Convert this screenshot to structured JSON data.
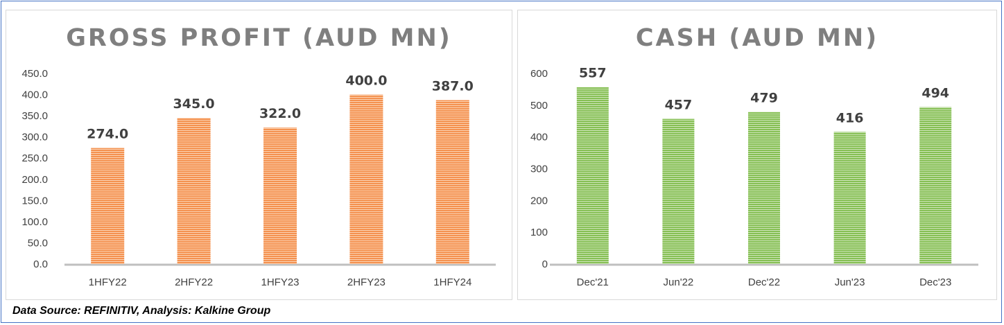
{
  "source": "Data Source: REFINITIV, Analysis: Kalkine Group",
  "colors": {
    "left": "#f4914f",
    "left_stripe": "#fbd3b4",
    "right": "#86bf54",
    "right_stripe": "#cfe6bb"
  },
  "chart_data": [
    {
      "type": "bar",
      "title": "GROSS PROFIT (AUD MN)",
      "categories": [
        "1HFY22",
        "2HFY22",
        "1HFY23",
        "2HFY23",
        "1HFY24"
      ],
      "values": [
        274.0,
        345.0,
        322.0,
        400.0,
        387.0
      ],
      "value_labels": [
        "274.0",
        "345.0",
        "322.0",
        "400.0",
        "387.0"
      ],
      "yticks": [
        "0.0",
        "50.0",
        "100.0",
        "150.0",
        "200.0",
        "250.0",
        "300.0",
        "350.0",
        "400.0",
        "450.0"
      ],
      "ylim": [
        0,
        450
      ],
      "grid": false,
      "legend": "none"
    },
    {
      "type": "bar",
      "title": "CASH (AUD MN)",
      "categories": [
        "Dec'21",
        "Jun'22",
        "Dec'22",
        "Jun'23",
        "Dec'23"
      ],
      "values": [
        557,
        457,
        479,
        416,
        494
      ],
      "value_labels": [
        "557",
        "457",
        "479",
        "416",
        "494"
      ],
      "yticks": [
        "0",
        "100",
        "200",
        "300",
        "400",
        "500",
        "600"
      ],
      "ylim": [
        0,
        600
      ],
      "grid": false,
      "legend": "none"
    }
  ]
}
